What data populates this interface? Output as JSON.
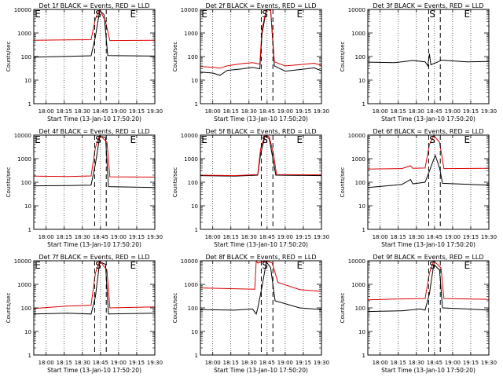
{
  "colors": {
    "events": "#000000",
    "lld": "#dd0000",
    "background": "#ffffff"
  },
  "common": {
    "ylabel": "Counts/sec",
    "xlabel": "Start Time (13-Jan-10 17:50:20)",
    "xticks": [
      "18:00",
      "18:15",
      "18:30",
      "18:45",
      "19:00",
      "19:15",
      "19:30"
    ],
    "yticks": [
      "1",
      "10",
      "100",
      "1000",
      "10000"
    ],
    "event_markers": {
      "S": "S",
      "E": "E"
    }
  },
  "chart_data": [
    {
      "type": "line",
      "title": "Det 1f BLACK = Events, RED = LLD",
      "xlim": [
        17.83,
        19.5
      ],
      "ylim": [
        1,
        10000
      ],
      "yscale": "log",
      "grid_x": "dotted",
      "markers": {
        "first_E": 17.86,
        "S": 18.72,
        "S_dash": [
          18.67,
          18.83
        ],
        "E": 19.2
      },
      "show_first_E": true,
      "series": [
        {
          "name": "Events",
          "points": [
            [
              17.83,
              95
            ],
            [
              18.3,
              102
            ],
            [
              18.62,
              108
            ],
            [
              18.68,
              700
            ],
            [
              18.74,
              9000
            ],
            [
              18.8,
              6000
            ],
            [
              18.85,
              110
            ],
            [
              19.5,
              105
            ]
          ]
        },
        {
          "name": "LLD",
          "points": [
            [
              17.83,
              490
            ],
            [
              18.3,
              510
            ],
            [
              18.62,
              520
            ],
            [
              18.68,
              4000
            ],
            [
              18.74,
              10000
            ],
            [
              18.82,
              3000
            ],
            [
              18.88,
              480
            ],
            [
              19.5,
              490
            ]
          ]
        }
      ]
    },
    {
      "type": "line",
      "title": "Det 2f BLACK = Events, RED = LLD",
      "xlim": [
        17.83,
        19.5
      ],
      "ylim": [
        1,
        10000
      ],
      "yscale": "log",
      "grid_x": "dotted",
      "markers": {
        "first_E": 17.86,
        "S": 18.72,
        "S_dash": [
          18.67,
          18.83
        ],
        "E": 19.2
      },
      "show_first_E": true,
      "series": [
        {
          "name": "Events",
          "points": [
            [
              17.83,
              22
            ],
            [
              18.0,
              20
            ],
            [
              18.1,
              16
            ],
            [
              18.2,
              26
            ],
            [
              18.4,
              30
            ],
            [
              18.55,
              35
            ],
            [
              18.65,
              30
            ],
            [
              18.68,
              900
            ],
            [
              18.74,
              10000
            ],
            [
              18.8,
              9000
            ],
            [
              18.85,
              40
            ],
            [
              19.0,
              24
            ],
            [
              19.2,
              28
            ],
            [
              19.4,
              33
            ],
            [
              19.5,
              25
            ]
          ]
        },
        {
          "name": "LLD",
          "points": [
            [
              17.83,
              38
            ],
            [
              18.0,
              35
            ],
            [
              18.1,
              32
            ],
            [
              18.2,
              40
            ],
            [
              18.4,
              50
            ],
            [
              18.55,
              55
            ],
            [
              18.65,
              48
            ],
            [
              18.68,
              1500
            ],
            [
              18.74,
              10000
            ],
            [
              18.8,
              9500
            ],
            [
              18.85,
              60
            ],
            [
              19.0,
              40
            ],
            [
              19.2,
              45
            ],
            [
              19.4,
              52
            ],
            [
              19.5,
              42
            ]
          ]
        }
      ]
    },
    {
      "type": "line",
      "title": "Det 3f BLACK = Events, RED = LLD",
      "xlim": [
        17.83,
        19.5
      ],
      "ylim": [
        1,
        10000
      ],
      "yscale": "log",
      "grid_x": "dotted",
      "markers": {
        "first_E": null,
        "S": 18.72,
        "S_dash": [
          18.67,
          18.83
        ],
        "E": 19.2
      },
      "show_first_E": false,
      "series": [
        {
          "name": "Events",
          "points": [
            [
              17.83,
              58
            ],
            [
              18.2,
              55
            ],
            [
              18.45,
              68
            ],
            [
              18.62,
              60
            ],
            [
              18.66,
              40
            ],
            [
              18.68,
              130
            ],
            [
              18.7,
              45
            ],
            [
              18.8,
              60
            ],
            [
              18.85,
              70
            ],
            [
              19.2,
              60
            ],
            [
              19.5,
              62
            ]
          ]
        }
      ]
    },
    {
      "type": "line",
      "title": "Det 4f BLACK = Events, RED = LLD",
      "xlim": [
        17.83,
        19.5
      ],
      "ylim": [
        1,
        10000
      ],
      "yscale": "log",
      "grid_x": "dotted",
      "markers": {
        "first_E": 17.86,
        "S": 18.72,
        "S_dash": [
          18.67,
          18.83
        ],
        "E": 19.2
      },
      "show_first_E": true,
      "series": [
        {
          "name": "Events",
          "points": [
            [
              17.83,
              70
            ],
            [
              18.3,
              72
            ],
            [
              18.62,
              75
            ],
            [
              18.68,
              600
            ],
            [
              18.74,
              9000
            ],
            [
              18.82,
              8000
            ],
            [
              18.86,
              65
            ],
            [
              19.5,
              60
            ]
          ]
        },
        {
          "name": "LLD",
          "points": [
            [
              17.83,
              180
            ],
            [
              18.3,
              175
            ],
            [
              18.62,
              185
            ],
            [
              18.68,
              3000
            ],
            [
              18.74,
              10000
            ],
            [
              18.84,
              5000
            ],
            [
              18.88,
              170
            ],
            [
              19.5,
              165
            ]
          ]
        }
      ]
    },
    {
      "type": "line",
      "title": "Det 5f BLACK = Events, RED = LLD",
      "xlim": [
        17.83,
        19.5
      ],
      "ylim": [
        1,
        10000
      ],
      "yscale": "log",
      "grid_x": "dotted",
      "markers": {
        "first_E": 17.86,
        "S": 18.72,
        "S_dash": [
          18.67,
          18.83
        ],
        "E": 19.2
      },
      "show_first_E": true,
      "series": [
        {
          "name": "Events",
          "points": [
            [
              17.83,
              190
            ],
            [
              18.3,
              180
            ],
            [
              18.62,
              200
            ],
            [
              18.66,
              1500
            ],
            [
              18.72,
              9000
            ],
            [
              18.78,
              7000
            ],
            [
              18.83,
              1000
            ],
            [
              18.87,
              200
            ],
            [
              19.5,
              190
            ]
          ]
        },
        {
          "name": "LLD",
          "points": [
            [
              17.83,
              200
            ],
            [
              18.3,
              190
            ],
            [
              18.62,
              210
            ],
            [
              18.66,
              2500
            ],
            [
              18.72,
              10000
            ],
            [
              18.78,
              8500
            ],
            [
              18.84,
              1500
            ],
            [
              18.88,
              210
            ],
            [
              19.5,
              205
            ]
          ]
        }
      ]
    },
    {
      "type": "line",
      "title": "Det 6f BLACK = Events, RED = LLD",
      "xlim": [
        17.83,
        19.5
      ],
      "ylim": [
        1,
        10000
      ],
      "yscale": "log",
      "grid_x": "dotted",
      "markers": {
        "first_E": null,
        "S": 18.72,
        "S_dash": [
          18.67,
          18.83
        ],
        "E": 19.2
      },
      "show_first_E": false,
      "series": [
        {
          "name": "Events",
          "points": [
            [
              17.83,
              60
            ],
            [
              18.3,
              80
            ],
            [
              18.42,
              130
            ],
            [
              18.45,
              85
            ],
            [
              18.62,
              100
            ],
            [
              18.68,
              300
            ],
            [
              18.76,
              1400
            ],
            [
              18.82,
              400
            ],
            [
              18.86,
              90
            ],
            [
              19.5,
              75
            ]
          ]
        },
        {
          "name": "LLD",
          "points": [
            [
              17.83,
              360
            ],
            [
              18.3,
              380
            ],
            [
              18.42,
              500
            ],
            [
              18.45,
              390
            ],
            [
              18.62,
              400
            ],
            [
              18.68,
              4000
            ],
            [
              18.74,
              9500
            ],
            [
              18.82,
              5000
            ],
            [
              18.88,
              380
            ],
            [
              19.5,
              390
            ]
          ]
        }
      ]
    },
    {
      "type": "line",
      "title": "Det 7f BLACK = Events, RED = LLD",
      "xlim": [
        17.83,
        19.5
      ],
      "ylim": [
        1,
        10000
      ],
      "yscale": "log",
      "grid_x": "dotted",
      "markers": {
        "first_E": 17.86,
        "S": 18.72,
        "S_dash": [
          18.67,
          18.83
        ],
        "E": 19.2
      },
      "show_first_E": true,
      "series": [
        {
          "name": "Events",
          "points": [
            [
              17.83,
              55
            ],
            [
              18.3,
              60
            ],
            [
              18.62,
              55
            ],
            [
              18.68,
              300
            ],
            [
              18.74,
              9000
            ],
            [
              18.82,
              7000
            ],
            [
              18.86,
              55
            ],
            [
              19.5,
              60
            ]
          ]
        },
        {
          "name": "LLD",
          "points": [
            [
              17.83,
              95
            ],
            [
              18.3,
              120
            ],
            [
              18.62,
              130
            ],
            [
              18.68,
              3000
            ],
            [
              18.74,
              10000
            ],
            [
              18.84,
              4000
            ],
            [
              18.88,
              100
            ],
            [
              19.5,
              110
            ]
          ]
        }
      ]
    },
    {
      "type": "line",
      "title": "Det 8f BLACK = Events, RED = LLD",
      "xlim": [
        17.83,
        19.5
      ],
      "ylim": [
        1,
        10000
      ],
      "yscale": "log",
      "grid_x": "dotted",
      "markers": {
        "first_E": null,
        "S": 18.72,
        "S_dash": [
          18.67,
          18.83
        ],
        "E": 19.2
      },
      "show_first_E": false,
      "series": [
        {
          "name": "Events",
          "points": [
            [
              17.83,
              85
            ],
            [
              18.3,
              80
            ],
            [
              18.55,
              90
            ],
            [
              18.6,
              55
            ],
            [
              18.62,
              95
            ],
            [
              18.68,
              800
            ],
            [
              18.74,
              9000
            ],
            [
              18.8,
              5000
            ],
            [
              18.86,
              200
            ],
            [
              19.2,
              100
            ],
            [
              19.5,
              85
            ]
          ]
        },
        {
          "name": "LLD",
          "points": [
            [
              17.83,
              700
            ],
            [
              18.3,
              650
            ],
            [
              18.58,
              620
            ],
            [
              18.6,
              10000
            ],
            [
              18.62,
              8000
            ],
            [
              18.74,
              10000
            ],
            [
              18.82,
              8000
            ],
            [
              18.9,
              1200
            ],
            [
              19.2,
              600
            ],
            [
              19.5,
              500
            ]
          ]
        }
      ]
    },
    {
      "type": "line",
      "title": "Det 9f BLACK = Events, RED = LLD",
      "xlim": [
        17.83,
        19.5
      ],
      "ylim": [
        1,
        10000
      ],
      "yscale": "log",
      "grid_x": "dotted",
      "markers": {
        "first_E": null,
        "S": 18.72,
        "S_dash": [
          18.67,
          18.83
        ],
        "E": 19.2
      },
      "show_first_E": false,
      "series": [
        {
          "name": "Events",
          "points": [
            [
              17.83,
              70
            ],
            [
              18.3,
              75
            ],
            [
              18.55,
              90
            ],
            [
              18.62,
              80
            ],
            [
              18.68,
              400
            ],
            [
              18.74,
              7000
            ],
            [
              18.82,
              4000
            ],
            [
              18.86,
              100
            ],
            [
              19.2,
              90
            ],
            [
              19.5,
              80
            ]
          ]
        },
        {
          "name": "LLD",
          "points": [
            [
              17.83,
              220
            ],
            [
              18.3,
              240
            ],
            [
              18.62,
              250
            ],
            [
              18.68,
              3000
            ],
            [
              18.74,
              10000
            ],
            [
              18.84,
              5000
            ],
            [
              18.88,
              250
            ],
            [
              19.5,
              230
            ]
          ]
        }
      ]
    }
  ]
}
